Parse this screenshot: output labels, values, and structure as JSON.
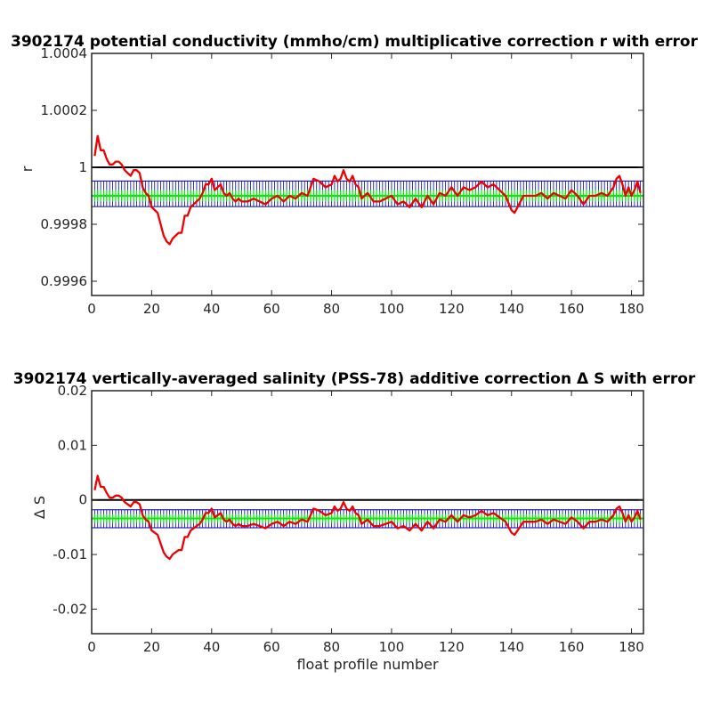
{
  "chart_data": [
    {
      "type": "line",
      "title": "3902174 potential conductivity (mmho/cm) multiplicative correction r with error",
      "xlabel": "",
      "ylabel": "r",
      "xlim": [
        0,
        184
      ],
      "ylim": [
        0.99955,
        1.0004
      ],
      "xticks": [
        0,
        20,
        40,
        60,
        80,
        100,
        120,
        140,
        160,
        180
      ],
      "xtick_labels": [
        "0",
        "20",
        "40",
        "60",
        "80",
        "100",
        "120",
        "140",
        "160",
        "180"
      ],
      "yticks": [
        0.9996,
        0.9998,
        1,
        1.0002,
        1.0004
      ],
      "ytick_labels": [
        "0.9996",
        "0.9998",
        "1",
        "1.0002",
        "1.0004"
      ],
      "reference_line": 1,
      "fit": {
        "value": 0.9999,
        "inner_band": [
          0.99988,
          0.99992
        ],
        "outer_band": [
          0.999862,
          0.999952
        ],
        "color": "#00ee00",
        "band_color": "#0000aa"
      },
      "series": [
        {
          "color": "#ee0000",
          "x": [
            1,
            2,
            3,
            4,
            5,
            6,
            7,
            8,
            9,
            10,
            11,
            12,
            13,
            14,
            15,
            16,
            17,
            18,
            19,
            20,
            21,
            22,
            23,
            24,
            25,
            26,
            27,
            28,
            29,
            30,
            31,
            32,
            33,
            34,
            35,
            36,
            37,
            38,
            39,
            40,
            41,
            42,
            43,
            44,
            45,
            46,
            47,
            48,
            49,
            50,
            52,
            54,
            56,
            58,
            60,
            62,
            64,
            66,
            68,
            70,
            72,
            74,
            76,
            78,
            80,
            81,
            82,
            83,
            84,
            85,
            86,
            87,
            88,
            89,
            90,
            92,
            94,
            96,
            98,
            100,
            102,
            104,
            106,
            108,
            110,
            112,
            114,
            116,
            118,
            120,
            122,
            124,
            126,
            128,
            130,
            132,
            134,
            136,
            138,
            140,
            141,
            142,
            144,
            146,
            148,
            150,
            152,
            154,
            156,
            158,
            160,
            162,
            164,
            166,
            168,
            170,
            172,
            174,
            175,
            176,
            177,
            178,
            179,
            180,
            181,
            182,
            183
          ],
          "values": [
            1.00004,
            1.00011,
            1.00006,
            1.00006,
            1.00003,
            1.00001,
            1.00001,
            1.00002,
            1.00002,
            1.00001,
            0.99999,
            0.99998,
            0.99997,
            0.99999,
            0.99999,
            0.99998,
            0.99993,
            0.99991,
            0.9999,
            0.99986,
            0.99985,
            0.99984,
            0.9998,
            0.99976,
            0.99974,
            0.99973,
            0.99975,
            0.99976,
            0.99977,
            0.99977,
            0.99983,
            0.99983,
            0.99986,
            0.99987,
            0.99988,
            0.99989,
            0.99991,
            0.99994,
            0.99994,
            0.99996,
            0.99992,
            0.99993,
            0.99994,
            0.99991,
            0.9999,
            0.99991,
            0.99989,
            0.99988,
            0.99989,
            0.99988,
            0.99988,
            0.99989,
            0.99988,
            0.99987,
            0.99989,
            0.9999,
            0.99988,
            0.9999,
            0.99989,
            0.99991,
            0.9999,
            0.99996,
            0.99995,
            0.99993,
            0.99994,
            0.99997,
            0.99995,
            0.99996,
            0.99999,
            0.99996,
            0.99995,
            0.99997,
            0.99994,
            0.99993,
            0.99989,
            0.99991,
            0.99988,
            0.99988,
            0.99989,
            0.9999,
            0.99987,
            0.99988,
            0.99986,
            0.99989,
            0.99986,
            0.9999,
            0.99987,
            0.99991,
            0.9999,
            0.99993,
            0.9999,
            0.99993,
            0.99992,
            0.99993,
            0.99995,
            0.99993,
            0.99994,
            0.99992,
            0.9999,
            0.99985,
            0.99984,
            0.99986,
            0.9999,
            0.9999,
            0.9999,
            0.99991,
            0.99989,
            0.99991,
            0.9999,
            0.99989,
            0.99992,
            0.9999,
            0.99987,
            0.9999,
            0.9999,
            0.99991,
            0.9999,
            0.99993,
            0.99996,
            0.99997,
            0.99994,
            0.9999,
            0.99993,
            0.9999,
            0.99992,
            0.99995,
            0.99991
          ]
        }
      ]
    },
    {
      "type": "line",
      "title": "3902174 vertically-averaged salinity (PSS-78) additive correction Δ S with error",
      "xlabel": "float profile number",
      "ylabel": "Δ S",
      "xlim": [
        0,
        184
      ],
      "ylim": [
        -0.0245,
        0.02
      ],
      "xticks": [
        0,
        20,
        40,
        60,
        80,
        100,
        120,
        140,
        160,
        180
      ],
      "xtick_labels": [
        "0",
        "20",
        "40",
        "60",
        "80",
        "100",
        "120",
        "140",
        "160",
        "180"
      ],
      "yticks": [
        -0.02,
        -0.01,
        0,
        0.01,
        0.02
      ],
      "ytick_labels": [
        "-0.02",
        "-0.01",
        "0",
        "0.01",
        "0.02"
      ],
      "reference_line": 0,
      "fit": {
        "value": -0.0034,
        "inner_band": [
          -0.0042,
          -0.0026
        ],
        "outer_band": [
          -0.0051,
          -0.0018
        ],
        "color": "#00ee00",
        "band_color": "#0000aa"
      },
      "series": [
        {
          "color": "#ee0000",
          "x": [
            1,
            2,
            3,
            4,
            5,
            6,
            7,
            8,
            9,
            10,
            11,
            12,
            13,
            14,
            15,
            16,
            17,
            18,
            19,
            20,
            21,
            22,
            23,
            24,
            25,
            26,
            27,
            28,
            29,
            30,
            31,
            32,
            33,
            34,
            35,
            36,
            37,
            38,
            39,
            40,
            41,
            42,
            43,
            44,
            45,
            46,
            47,
            48,
            49,
            50,
            52,
            54,
            56,
            58,
            60,
            62,
            64,
            66,
            68,
            70,
            72,
            74,
            76,
            78,
            80,
            81,
            82,
            83,
            84,
            85,
            86,
            87,
            88,
            89,
            90,
            92,
            94,
            96,
            98,
            100,
            102,
            104,
            106,
            108,
            110,
            112,
            114,
            116,
            118,
            120,
            122,
            124,
            126,
            128,
            130,
            132,
            134,
            136,
            138,
            140,
            141,
            142,
            144,
            146,
            148,
            150,
            152,
            154,
            156,
            158,
            160,
            162,
            164,
            166,
            168,
            170,
            172,
            174,
            175,
            176,
            177,
            178,
            179,
            180,
            181,
            182,
            183
          ],
          "values": [
            0.0018,
            0.0044,
            0.0024,
            0.0024,
            0.0013,
            0.0004,
            0.0004,
            0.0008,
            0.0008,
            0.0004,
            -0.0004,
            -0.0008,
            -0.0012,
            -0.0004,
            -0.0004,
            -0.0008,
            -0.0028,
            -0.0036,
            -0.004,
            -0.0056,
            -0.006,
            -0.0064,
            -0.008,
            -0.0096,
            -0.0104,
            -0.0108,
            -0.01,
            -0.0096,
            -0.0092,
            -0.0092,
            -0.0068,
            -0.0068,
            -0.0056,
            -0.0052,
            -0.0048,
            -0.0044,
            -0.0036,
            -0.0024,
            -0.0024,
            -0.0016,
            -0.0032,
            -0.0028,
            -0.0024,
            -0.0036,
            -0.004,
            -0.0036,
            -0.0044,
            -0.0048,
            -0.0044,
            -0.0048,
            -0.0048,
            -0.0044,
            -0.0048,
            -0.0052,
            -0.0044,
            -0.004,
            -0.0048,
            -0.004,
            -0.0044,
            -0.0036,
            -0.004,
            -0.0016,
            -0.002,
            -0.0028,
            -0.0024,
            -0.0012,
            -0.002,
            -0.0016,
            -0.0004,
            -0.0016,
            -0.002,
            -0.0012,
            -0.0024,
            -0.0028,
            -0.0044,
            -0.0036,
            -0.0048,
            -0.0048,
            -0.0044,
            -0.004,
            -0.0052,
            -0.0048,
            -0.0056,
            -0.0044,
            -0.0056,
            -0.004,
            -0.0052,
            -0.0036,
            -0.004,
            -0.0028,
            -0.004,
            -0.0028,
            -0.0032,
            -0.0028,
            -0.002,
            -0.0028,
            -0.0024,
            -0.0032,
            -0.004,
            -0.006,
            -0.0064,
            -0.0056,
            -0.004,
            -0.004,
            -0.004,
            -0.0036,
            -0.0044,
            -0.0036,
            -0.004,
            -0.0044,
            -0.0032,
            -0.004,
            -0.0052,
            -0.004,
            -0.004,
            -0.0036,
            -0.004,
            -0.0028,
            -0.0016,
            -0.0012,
            -0.0024,
            -0.004,
            -0.0028,
            -0.004,
            -0.0032,
            -0.002,
            -0.0036
          ]
        }
      ]
    }
  ]
}
